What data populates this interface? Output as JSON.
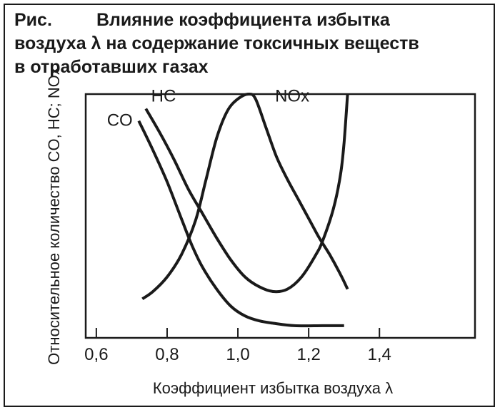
{
  "caption": {
    "label": "Рис.",
    "line1": "Влияние коэффициента избытка",
    "line2": "воздуха λ на содержание токсичных веществ",
    "line3": "в отработавших газах"
  },
  "chart_data": {
    "type": "line",
    "title": "",
    "xlabel": "Коэффициент избытка воздуха λ",
    "ylabel": "Относительное количество CO, HC; NOx",
    "xlim": [
      0.57,
      1.67
    ],
    "ylim": [
      0,
      100
    ],
    "xticks": [
      0.6,
      0.8,
      1.0,
      1.2,
      1.4
    ],
    "xtick_labels": [
      "0,6",
      "0,8",
      "1,0",
      "1,2",
      "1,4"
    ],
    "yticks": [],
    "grid": false,
    "legend": "none",
    "series": [
      {
        "name": "CO",
        "label_at": [
          0.63,
          87
        ],
        "points": [
          [
            0.72,
            89
          ],
          [
            0.76,
            77
          ],
          [
            0.8,
            64
          ],
          [
            0.84,
            49
          ],
          [
            0.87,
            38
          ],
          [
            0.9,
            29
          ],
          [
            0.94,
            20
          ],
          [
            0.98,
            13
          ],
          [
            1.02,
            9
          ],
          [
            1.06,
            7
          ],
          [
            1.1,
            6
          ],
          [
            1.16,
            5
          ],
          [
            1.24,
            5
          ],
          [
            1.3,
            5
          ]
        ]
      },
      {
        "name": "HC",
        "label_at": [
          0.755,
          97
        ],
        "points": [
          [
            0.74,
            94
          ],
          [
            0.78,
            84
          ],
          [
            0.82,
            73
          ],
          [
            0.86,
            61
          ],
          [
            0.9,
            51
          ],
          [
            0.94,
            41
          ],
          [
            0.98,
            32
          ],
          [
            1.02,
            25
          ],
          [
            1.06,
            21
          ],
          [
            1.1,
            19
          ],
          [
            1.14,
            20
          ],
          [
            1.18,
            25
          ],
          [
            1.22,
            34
          ],
          [
            1.24,
            40
          ],
          [
            1.27,
            53
          ],
          [
            1.29,
            67
          ],
          [
            1.3,
            80
          ],
          [
            1.31,
            100
          ]
        ]
      },
      {
        "name": "NOx",
        "label_at": [
          1.105,
          97
        ],
        "points": [
          [
            0.73,
            16
          ],
          [
            0.76,
            19
          ],
          [
            0.8,
            25
          ],
          [
            0.84,
            34
          ],
          [
            0.88,
            48
          ],
          [
            0.91,
            65
          ],
          [
            0.94,
            82
          ],
          [
            0.97,
            93
          ],
          [
            1.0,
            98
          ],
          [
            1.03,
            100
          ],
          [
            1.05,
            98
          ],
          [
            1.08,
            86
          ],
          [
            1.11,
            74
          ],
          [
            1.14,
            65
          ],
          [
            1.17,
            57
          ],
          [
            1.2,
            49
          ],
          [
            1.23,
            41
          ],
          [
            1.26,
            34
          ],
          [
            1.29,
            26
          ],
          [
            1.31,
            20
          ]
        ]
      }
    ]
  }
}
